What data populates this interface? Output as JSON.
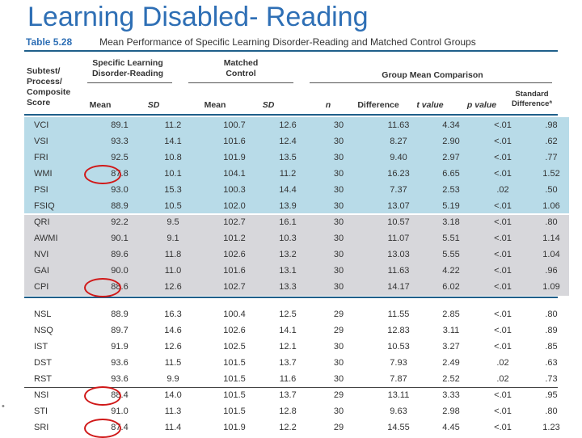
{
  "slide": {
    "title": "Learning Disabled- Reading"
  },
  "table": {
    "number": "Table 5.28",
    "caption": "Mean Performance of Specific Learning Disorder-Reading and Matched Control Groups",
    "groups": {
      "row_header": "Subtest/ Process/ Composite Score",
      "sld": "Specific Learning Disorder-Reading",
      "control": "Matched Control",
      "comparison": "Group Mean Comparison",
      "std_diff": "Standard Differenceª"
    },
    "columns": [
      "Mean",
      "SD",
      "Mean",
      "SD",
      "n",
      "Difference",
      "t value",
      "p value"
    ],
    "rows_blue": [
      [
        "VCI",
        "89.1",
        "11.2",
        "100.7",
        "12.6",
        "30",
        "11.63",
        "4.34",
        "<.01",
        ".98"
      ],
      [
        "VSI",
        "93.3",
        "14.1",
        "101.6",
        "12.4",
        "30",
        "8.27",
        "2.90",
        "<.01",
        ".62"
      ],
      [
        "FRI",
        "92.5",
        "10.8",
        "101.9",
        "13.5",
        "30",
        "9.40",
        "2.97",
        "<.01",
        ".77"
      ],
      [
        "WMI",
        "87.8",
        "10.1",
        "104.1",
        "11.2",
        "30",
        "16.23",
        "6.65",
        "<.01",
        "1.52"
      ],
      [
        "PSI",
        "93.0",
        "15.3",
        "100.3",
        "14.4",
        "30",
        "7.37",
        "2.53",
        ".02",
        ".50"
      ],
      [
        "FSIQ",
        "88.9",
        "10.5",
        "102.0",
        "13.9",
        "30",
        "13.07",
        "5.19",
        "<.01",
        "1.06"
      ]
    ],
    "rows_gray": [
      [
        "QRI",
        "92.2",
        "9.5",
        "102.7",
        "16.1",
        "30",
        "10.57",
        "3.18",
        "<.01",
        ".80"
      ],
      [
        "AWMI",
        "90.1",
        "9.1",
        "101.2",
        "10.3",
        "30",
        "11.07",
        "5.51",
        "<.01",
        "1.14"
      ],
      [
        "NVI",
        "89.6",
        "11.8",
        "102.6",
        "13.2",
        "30",
        "13.03",
        "5.55",
        "<.01",
        "1.04"
      ],
      [
        "GAI",
        "90.0",
        "11.0",
        "101.6",
        "13.1",
        "30",
        "11.63",
        "4.22",
        "<.01",
        ".96"
      ],
      [
        "CPI",
        "88.6",
        "12.6",
        "102.7",
        "13.3",
        "30",
        "14.17",
        "6.02",
        "<.01",
        "1.09"
      ]
    ],
    "rows_white": [
      [
        "NSL",
        "88.9",
        "16.3",
        "100.4",
        "12.5",
        "29",
        "11.55",
        "2.85",
        "<.01",
        ".80"
      ],
      [
        "NSQ",
        "89.7",
        "14.6",
        "102.6",
        "14.1",
        "29",
        "12.83",
        "3.11",
        "<.01",
        ".89"
      ],
      [
        "IST",
        "91.9",
        "12.6",
        "102.5",
        "12.1",
        "30",
        "10.53",
        "3.27",
        "<.01",
        ".85"
      ],
      [
        "DST",
        "93.6",
        "11.5",
        "101.5",
        "13.7",
        "30",
        "7.93",
        "2.49",
        ".02",
        ".63"
      ],
      [
        "RST",
        "93.6",
        "9.9",
        "101.5",
        "11.6",
        "30",
        "7.87",
        "2.52",
        ".02",
        ".73"
      ],
      [
        "NSI",
        "88.4",
        "14.0",
        "101.5",
        "13.7",
        "29",
        "13.11",
        "3.33",
        "<.01",
        ".95"
      ],
      [
        "STI",
        "91.0",
        "11.3",
        "101.5",
        "12.8",
        "30",
        "9.63",
        "2.98",
        "<.01",
        ".80"
      ],
      [
        "SRI",
        "87.4",
        "11.4",
        "101.9",
        "12.2",
        "29",
        "14.55",
        "4.45",
        "<.01",
        "1.23"
      ]
    ],
    "highlight_color": "#d01818"
  }
}
